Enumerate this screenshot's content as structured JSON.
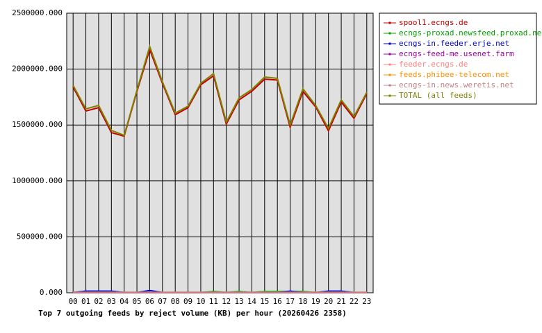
{
  "chart_data": {
    "type": "line",
    "title": "Top 7 outgoing feeds by reject volume (KB) per hour (20260426 2358)",
    "categories": [
      "00",
      "01",
      "02",
      "03",
      "04",
      "05",
      "06",
      "07",
      "08",
      "09",
      "10",
      "11",
      "12",
      "13",
      "14",
      "15",
      "16",
      "17",
      "18",
      "19",
      "20",
      "21",
      "22",
      "23"
    ],
    "ylim": [
      0,
      2500000
    ],
    "yticks": [
      {
        "value": 0,
        "label": "0.000"
      },
      {
        "value": 500000,
        "label": "500000.000"
      },
      {
        "value": 1000000,
        "label": "1000000.000"
      },
      {
        "value": 1500000,
        "label": "1500000.000"
      },
      {
        "value": 2000000,
        "label": "2000000.000"
      },
      {
        "value": 2500000,
        "label": "2500000.000"
      }
    ],
    "grid": true,
    "series": [
      {
        "name": "spool1.ecngs.de",
        "color": "#c00000",
        "values": [
          1840000,
          1625000,
          1655000,
          1432000,
          1400000,
          1800000,
          2175000,
          1872000,
          1592000,
          1655000,
          1860000,
          1940000,
          1508000,
          1725000,
          1802000,
          1910000,
          1902000,
          1480000,
          1800000,
          1662000,
          1448000,
          1705000,
          1560000,
          1780000
        ]
      },
      {
        "name": "ecngs-proxad.newsfeed.proxad.net",
        "color": "#00a000",
        "values": [
          2000,
          3000,
          3000,
          2000,
          2000,
          2000,
          4000,
          3000,
          2000,
          2000,
          3000,
          12000,
          3000,
          12000,
          3000,
          12000,
          12000,
          12000,
          12000,
          3000,
          3000,
          3000,
          2000,
          3000
        ]
      },
      {
        "name": "ecngs-in.feeder.erje.net",
        "color": "#0000c0",
        "values": [
          3000,
          15000,
          15000,
          15000,
          3000,
          3000,
          20000,
          3000,
          3000,
          3000,
          3000,
          3000,
          3000,
          3000,
          3000,
          3000,
          3000,
          15000,
          3000,
          3000,
          15000,
          15000,
          3000,
          3000
        ]
      },
      {
        "name": "ecngs-feed-me.usenet.farm",
        "color": "#a000a0",
        "values": [
          1000,
          1000,
          1000,
          1000,
          1000,
          1000,
          1000,
          1000,
          1000,
          1000,
          1000,
          1000,
          1000,
          1000,
          1000,
          1000,
          1000,
          1000,
          1000,
          1000,
          1000,
          1000,
          1000,
          1000
        ]
      },
      {
        "name": "feeder.ecngs.de",
        "color": "#ff8080",
        "values": [
          5000,
          5000,
          5000,
          5000,
          5000,
          5000,
          5000,
          5000,
          5000,
          5000,
          5000,
          5000,
          5000,
          5000,
          5000,
          5000,
          5000,
          5000,
          5000,
          5000,
          5000,
          5000,
          5000,
          5000
        ]
      },
      {
        "name": "feeds.phibee-telecom.net",
        "color": "#ff9000",
        "values": [
          2000,
          2000,
          2000,
          2000,
          2000,
          2000,
          2000,
          2000,
          2000,
          2000,
          2000,
          2000,
          2000,
          2000,
          2000,
          2000,
          2000,
          2000,
          2000,
          5000,
          2000,
          2000,
          2000,
          2000
        ]
      },
      {
        "name": "ecngs-in.news.weretis.net",
        "color": "#c08080",
        "values": [
          3000,
          3000,
          3000,
          3000,
          3000,
          3000,
          3000,
          3000,
          3000,
          3000,
          3000,
          3000,
          3000,
          3000,
          3000,
          3000,
          3000,
          3000,
          3000,
          3000,
          3000,
          3000,
          3000,
          3000
        ]
      },
      {
        "name": "TOTAL (all feeds)",
        "color": "#808000",
        "values": [
          1855000,
          1644000,
          1675000,
          1452000,
          1408000,
          1811000,
          2202000,
          1886000,
          1607000,
          1669000,
          1873000,
          1960000,
          1526000,
          1743000,
          1818000,
          1929000,
          1917000,
          1501000,
          1824000,
          1675000,
          1470000,
          1725000,
          1576000,
          1793000
        ]
      }
    ]
  }
}
